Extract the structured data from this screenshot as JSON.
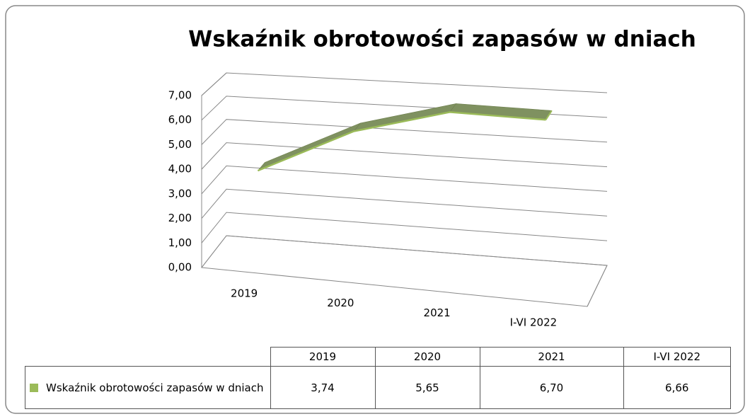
{
  "chart_data": {
    "type": "line3d",
    "title": "Wskaźnik obrotowości zapasów w dniach",
    "categories": [
      "2019",
      "2020",
      "2021",
      "I-VI 2022"
    ],
    "series": [
      {
        "name": "Wskaźnik obrotowości zapasów w dniach",
        "color": "#9bbb59",
        "values": [
          3.74,
          5.65,
          6.7,
          6.66
        ],
        "value_labels": [
          "3,74",
          "5,65",
          "6,70",
          "6,66"
        ]
      }
    ],
    "ylim": [
      0,
      7
    ],
    "yticks": [
      {
        "value": 0,
        "label": "0,00"
      },
      {
        "value": 1,
        "label": "1,00"
      },
      {
        "value": 2,
        "label": "2,00"
      },
      {
        "value": 3,
        "label": "3,00"
      },
      {
        "value": 4,
        "label": "4,00"
      },
      {
        "value": 5,
        "label": "5,00"
      },
      {
        "value": 6,
        "label": "6,00"
      },
      {
        "value": 7,
        "label": "7,00"
      }
    ],
    "grid": true
  }
}
